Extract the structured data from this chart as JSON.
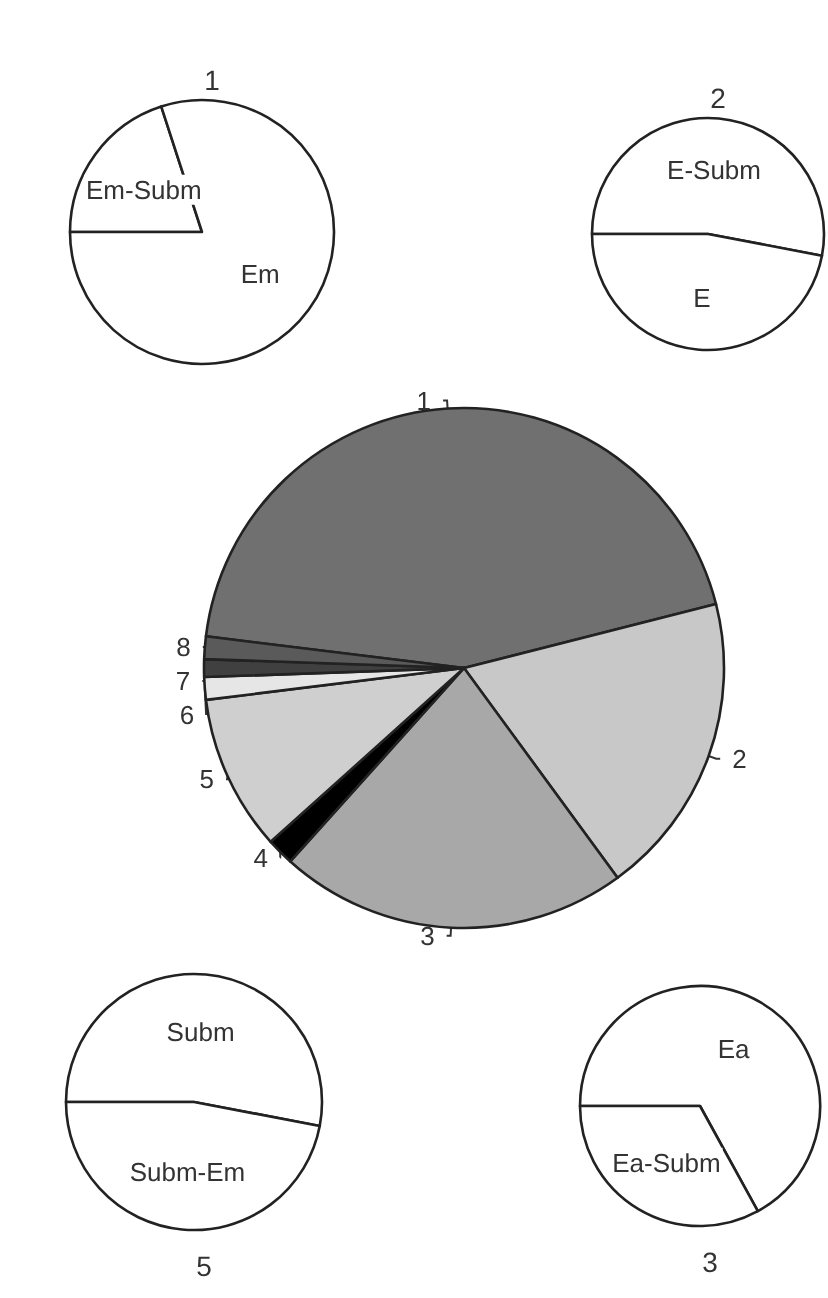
{
  "chart_data": [
    {
      "type": "pie",
      "title": "1",
      "categories": [
        "Em-Subm",
        "Em"
      ],
      "values": [
        20,
        80
      ],
      "colors": [
        "#ffffff",
        "#ffffff"
      ]
    },
    {
      "type": "pie",
      "title": "2",
      "categories": [
        "E-Subm",
        "E"
      ],
      "values": [
        53,
        47
      ],
      "colors": [
        "#ffffff",
        "#ffffff"
      ]
    },
    {
      "type": "pie",
      "categories": [
        "1",
        "2",
        "3",
        "4",
        "5",
        "6",
        "7",
        "8"
      ],
      "values": [
        44.1,
        18.9,
        21.7,
        1.7,
        9.7,
        1.4,
        1.1,
        1.4
      ],
      "colors": [
        "#707070",
        "#c8c8c8",
        "#a8a8a8",
        "#000000",
        "#cfcfcf",
        "#e6e6e6",
        "#404040",
        "#5a5a5a"
      ]
    },
    {
      "type": "pie",
      "title": "5",
      "categories": [
        "Subm",
        "Subm-Em"
      ],
      "values": [
        53,
        47
      ],
      "colors": [
        "#ffffff",
        "#ffffff"
      ]
    },
    {
      "type": "pie",
      "title": "3",
      "categories": [
        "Ea",
        "Ea-Subm"
      ],
      "values": [
        67,
        33
      ],
      "colors": [
        "#ffffff",
        "#ffffff"
      ]
    }
  ]
}
